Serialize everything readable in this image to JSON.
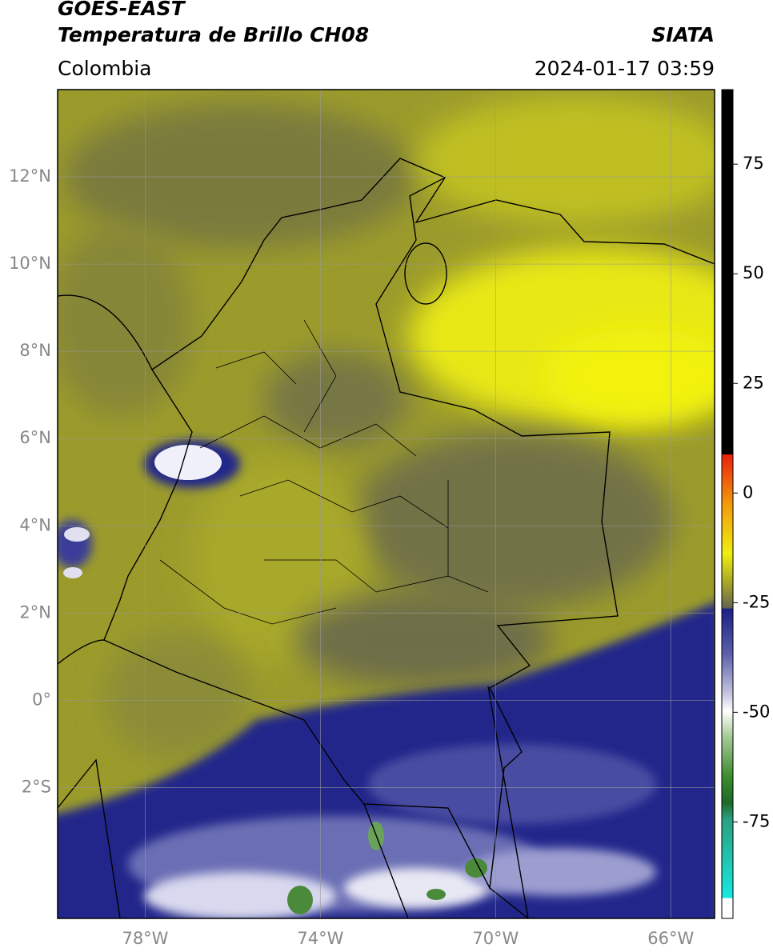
{
  "header": {
    "title": "GOES-EAST",
    "subtitle": "Temperatura de Brillo CH08",
    "source": "SIATA",
    "region": "Colombia",
    "datetime": "2024-01-17 03:59"
  },
  "map": {
    "xlim": [
      -80,
      -65
    ],
    "ylim": [
      -5,
      14
    ],
    "lat_ticks": [
      {
        "value": 12,
        "label": "12°N"
      },
      {
        "value": 10,
        "label": "10°N"
      },
      {
        "value": 8,
        "label": "8°N"
      },
      {
        "value": 6,
        "label": "6°N"
      },
      {
        "value": 4,
        "label": "4°N"
      },
      {
        "value": 2,
        "label": "2°N"
      },
      {
        "value": 0,
        "label": "0°"
      },
      {
        "value": -2,
        "label": "2°S"
      }
    ],
    "lon_ticks": [
      {
        "value": -78,
        "label": "78°W"
      },
      {
        "value": -74,
        "label": "74°W"
      },
      {
        "value": -70,
        "label": "70°W"
      },
      {
        "value": -66,
        "label": "66°W"
      }
    ]
  },
  "colorbar": {
    "range": [
      -97,
      92
    ],
    "ticks": [
      75,
      50,
      25,
      0,
      -25,
      -50,
      -75
    ]
  }
}
